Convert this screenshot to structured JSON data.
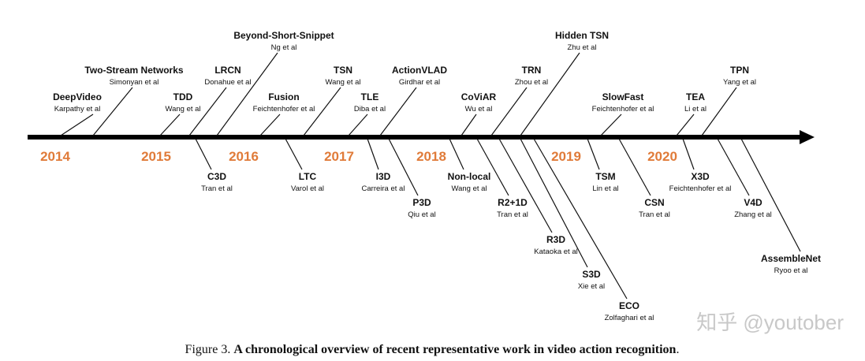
{
  "years": [
    "2014",
    "2015",
    "2016",
    "2017",
    "2018",
    "2019",
    "2020"
  ],
  "above": [
    {
      "name": "DeepVideo",
      "author": "Karpathy et al"
    },
    {
      "name": "Two-Stream Networks",
      "author": "Simonyan et al"
    },
    {
      "name": "TDD",
      "author": "Wang et al"
    },
    {
      "name": "LRCN",
      "author": "Donahue et al"
    },
    {
      "name": "Beyond-Short-Snippet",
      "author": "Ng et al"
    },
    {
      "name": "Fusion",
      "author": "Feichtenhofer et al"
    },
    {
      "name": "TSN",
      "author": "Wang et al"
    },
    {
      "name": "TLE",
      "author": "Diba et al"
    },
    {
      "name": "ActionVLAD",
      "author": "Girdhar et al"
    },
    {
      "name": "CoViAR",
      "author": "Wu et al"
    },
    {
      "name": "TRN",
      "author": "Zhou et al"
    },
    {
      "name": "Hidden TSN",
      "author": "Zhu et al"
    },
    {
      "name": "SlowFast",
      "author": "Feichtenhofer et al"
    },
    {
      "name": "TEA",
      "author": "Li et al"
    },
    {
      "name": "TPN",
      "author": "Yang et al"
    }
  ],
  "below": [
    {
      "name": "C3D",
      "author": "Tran et al"
    },
    {
      "name": "LTC",
      "author": "Varol et al"
    },
    {
      "name": "I3D",
      "author": "Carreira et al"
    },
    {
      "name": "Non-local",
      "author": "Wang et al"
    },
    {
      "name": "P3D",
      "author": "Qiu et al"
    },
    {
      "name": "R2+1D",
      "author": "Tran et al"
    },
    {
      "name": "TSM",
      "author": "Lin et al"
    },
    {
      "name": "X3D",
      "author": "Feichtenhofer et al"
    },
    {
      "name": "CSN",
      "author": "Tran et al"
    },
    {
      "name": "V4D",
      "author": "Zhang et al"
    },
    {
      "name": "R3D",
      "author": "Kataoka et al"
    },
    {
      "name": "S3D",
      "author": "Xie et al"
    },
    {
      "name": "ECO",
      "author": "Zolfaghari et al"
    },
    {
      "name": "AssembleNet",
      "author": "Ryoo et al"
    }
  ],
  "caption": {
    "label": "Figure 3.",
    "text": "A chronological overview of recent representative work in video action recognition",
    "end": "."
  },
  "watermark": "知乎 @youtober"
}
